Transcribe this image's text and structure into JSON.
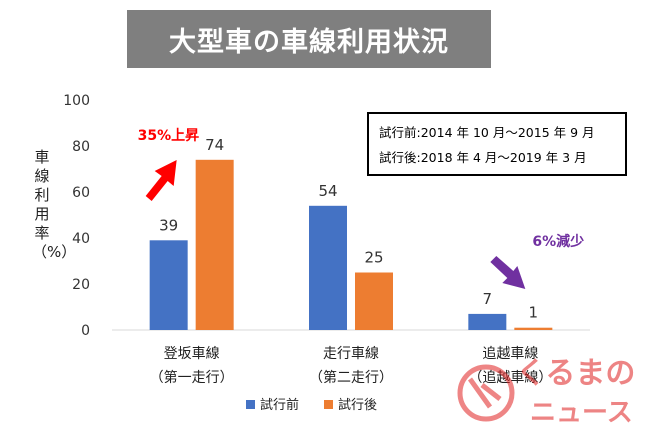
{
  "title": "大型車の車線利用状況",
  "period": {
    "before": "試行前:2014 年 10 月～2015 年 9 月",
    "after": "試行後:2018 年 4 月～2019 年 3 月"
  },
  "annotations": {
    "increase": "35%上昇",
    "decrease": "6%減少"
  },
  "watermark": {
    "text_top": "くるまの",
    "text_bottom": "ニュース"
  },
  "colors": {
    "before": "#4472c4",
    "after": "#ed7d31",
    "increase_arrow": "#ff0000",
    "decrease_arrow": "#7030a0",
    "watermark": "#e02020"
  },
  "chart_data": {
    "type": "bar",
    "title": "大型車の車線利用状況",
    "ylabel": "車線利用率（%）",
    "ylim": [
      0,
      100
    ],
    "yticks": [
      0,
      20,
      40,
      60,
      80,
      100
    ],
    "grid": false,
    "legend": "bottom",
    "categories": [
      [
        "登坂車線",
        "（第一走行）"
      ],
      [
        "走行車線",
        "（第二走行）"
      ],
      [
        "追越車線",
        "（追越車線）"
      ]
    ],
    "series": [
      {
        "name": "試行前",
        "values": [
          39,
          54,
          7
        ]
      },
      {
        "name": "試行後",
        "values": [
          74,
          25,
          1
        ]
      }
    ]
  }
}
